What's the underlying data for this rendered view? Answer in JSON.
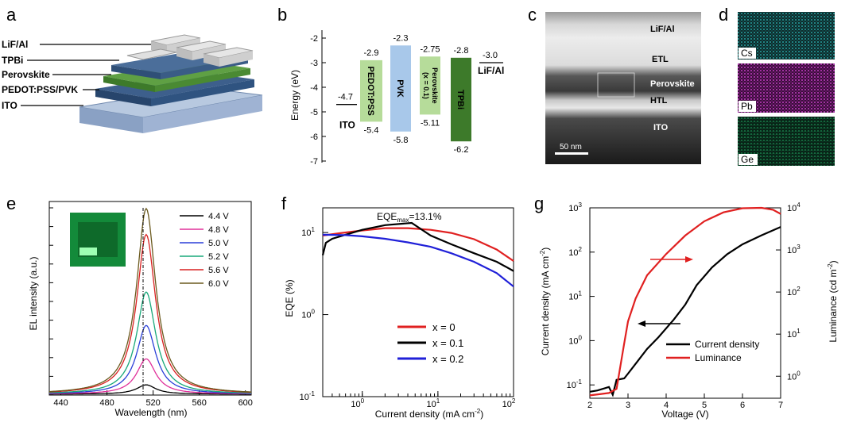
{
  "panels": {
    "a": {
      "letter": "a",
      "layers": [
        "LiF/Al",
        "TPBi",
        "Perovskite",
        "PEDOT:PSS/PVK",
        "ITO"
      ],
      "colors": {
        "lif": "#d4d4d4",
        "tpbi": "#3b5f8a",
        "perovskite": "#4f8d3a",
        "pvk": "#2f5278",
        "ito": "#a9bcd6"
      }
    },
    "b": {
      "letter": "b",
      "ylabel": "Energy (eV)",
      "yticks": [
        "-2",
        "-3",
        "-4",
        "-5",
        "-6",
        "-7"
      ],
      "materials": [
        {
          "name": "ITO",
          "top": "-4.7",
          "bottom": "",
          "color": "none"
        },
        {
          "name": "PEDOT:PSS",
          "top": "-2.9",
          "bottom": "-5.4",
          "color": "#b6dc9a"
        },
        {
          "name": "PVK",
          "top": "-2.3",
          "bottom": "-5.8",
          "color": "#a8c8ea"
        },
        {
          "name": "Perovskite\n(x = 0.1)",
          "top": "-2.75",
          "bottom": "-5.11",
          "color": "#b6dc9a"
        },
        {
          "name": "TPBi",
          "top": "-2.8",
          "bottom": "-6.2",
          "color": "#3d7a2a"
        },
        {
          "name": "LiF/Al",
          "top": "-3.0",
          "bottom": "",
          "color": "none"
        }
      ],
      "values": {
        "ito": -4.7,
        "pedot": [
          -2.9,
          -5.4
        ],
        "pvk": [
          -2.3,
          -5.8
        ],
        "perov": [
          -2.75,
          -5.11
        ],
        "tpbi": [
          -2.8,
          -6.2
        ],
        "lif": -3.0
      }
    },
    "c": {
      "letter": "c",
      "labels": [
        "LiF/Al",
        "ETL",
        "Perovskite",
        "HTL",
        "ITO"
      ],
      "scale": "50 nm"
    },
    "d": {
      "letter": "d",
      "maps": [
        {
          "label": "Cs",
          "color": "#2cc4c4"
        },
        {
          "label": "Pb",
          "color": "#c43cc4"
        },
        {
          "label": "Ge",
          "color": "#22b46a"
        }
      ]
    },
    "e": {
      "letter": "e",
      "xlabel": "Wavelength (nm)",
      "ylabel": "EL intensity (a.u.)",
      "xticks": [
        "440",
        "480",
        "520",
        "560",
        "600"
      ]
    },
    "f": {
      "letter": "f",
      "xlabel": "Current density (mA cm",
      "xlabel_sup": "-2",
      "xlabel_end": ")",
      "ylabel": "EQE (%)",
      "annotation": "EQE",
      "annotation_sub": "max",
      "annotation_end": "=13.1%"
    },
    "g": {
      "letter": "g",
      "xlabel": "Voltage (V)",
      "ylabel_left": "Current density (mA cm",
      "ylabel_left_sup": "-2",
      "ylabel_left_end": ")",
      "ylabel_right": "Luminance (cd m",
      "ylabel_right_sup": "-2",
      "ylabel_right_end": ")",
      "xticks": [
        "2",
        "3",
        "4",
        "5",
        "6",
        "7"
      ]
    }
  },
  "chart_data": [
    {
      "type": "line",
      "panel": "e",
      "xlabel": "Wavelength (nm)",
      "ylabel": "EL intensity (a.u.)",
      "xlim": [
        430,
        605
      ],
      "peak_nm": 514,
      "fwhm_nm": 20,
      "series": [
        {
          "name": "4.4 V",
          "color": "#000000",
          "peak": 0.05
        },
        {
          "name": "4.8 V",
          "color": "#e0309a",
          "peak": 0.19
        },
        {
          "name": "5.0 V",
          "color": "#2a3fd8",
          "peak": 0.37
        },
        {
          "name": "5.2 V",
          "color": "#19a87a",
          "peak": 0.55
        },
        {
          "name": "5.6 V",
          "color": "#d92020",
          "peak": 0.86
        },
        {
          "name": "6.0 V",
          "color": "#6b5a1e",
          "peak": 1.0
        }
      ]
    },
    {
      "type": "line",
      "panel": "f",
      "xscale": "log",
      "yscale": "log",
      "xlabel": "Current density (mA cm-2)",
      "ylabel": "EQE (%)",
      "xlim": [
        0.3,
        100
      ],
      "ylim": [
        0.1,
        20
      ],
      "series": [
        {
          "name": "x = 0",
          "color": "#e02020",
          "x": [
            0.3,
            0.5,
            1,
            2,
            4,
            8,
            15,
            30,
            60,
            100
          ],
          "y": [
            9.2,
            9.8,
            10.6,
            11.3,
            11.3,
            10.8,
            9.9,
            8.3,
            6.2,
            4.5
          ]
        },
        {
          "name": "x = 0.1",
          "color": "#000000",
          "x": [
            0.3,
            0.33,
            0.4,
            0.6,
            1,
            2,
            4.5,
            8,
            15,
            30,
            60,
            100
          ],
          "y": [
            5.3,
            7.5,
            8.4,
            9.4,
            10.8,
            12.3,
            13.1,
            9.2,
            7.2,
            5.6,
            4.4,
            3.4
          ]
        },
        {
          "name": "x = 0.2",
          "color": "#2020d8",
          "x": [
            0.3,
            0.6,
            1,
            2,
            4,
            8,
            15,
            30,
            60,
            100
          ],
          "y": [
            9.4,
            9.3,
            9.0,
            8.4,
            7.6,
            6.7,
            5.6,
            4.4,
            3.2,
            2.2
          ]
        }
      ],
      "legend": "lower-center"
    },
    {
      "type": "line",
      "panel": "g",
      "xlabel": "Voltage (V)",
      "xlim": [
        2,
        7
      ],
      "series": [
        {
          "name": "Current density",
          "color": "#000000",
          "axis": "left",
          "yscale": "log",
          "ylim": [
            0.05,
            1000
          ],
          "x": [
            2,
            2.2,
            2.5,
            2.6,
            2.7,
            2.9,
            3.0,
            3.2,
            3.5,
            3.8,
            4.2,
            4.5,
            4.8,
            5.2,
            5.6,
            6.0,
            6.5,
            7.0
          ],
          "y": [
            0.07,
            0.075,
            0.09,
            0.06,
            0.13,
            0.14,
            0.18,
            0.3,
            0.65,
            1.2,
            3.0,
            6.5,
            18,
            45,
            90,
            150,
            240,
            370
          ]
        },
        {
          "name": "Luminance",
          "color": "#e02020",
          "axis": "right",
          "yscale": "log",
          "ylim": [
            0.3,
            10000
          ],
          "x": [
            2,
            2.3,
            2.5,
            2.7,
            2.9,
            3.0,
            3.2,
            3.5,
            4.0,
            4.5,
            5.0,
            5.5,
            6.0,
            6.5,
            6.8,
            7.0
          ],
          "y": [
            0.35,
            0.38,
            0.4,
            0.5,
            6,
            20,
            70,
            250,
            800,
            2200,
            4800,
            7800,
            9800,
            10000,
            9000,
            7200
          ]
        }
      ],
      "legend": "lower-right"
    }
  ]
}
